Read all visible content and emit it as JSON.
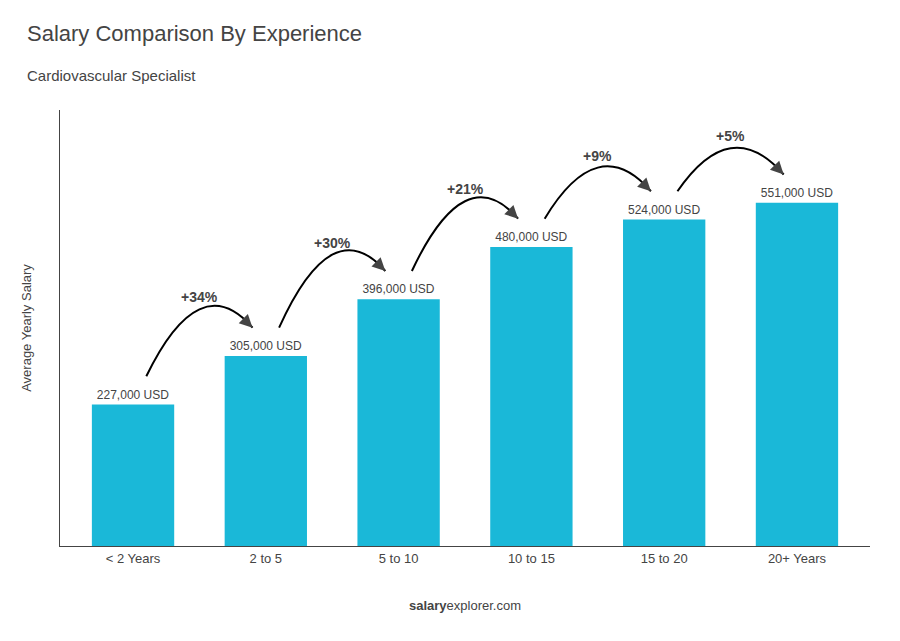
{
  "chart_data": {
    "type": "bar",
    "title": "Salary Comparison By Experience",
    "subtitle": "Cardiovascular Specialist",
    "categories": [
      "< 2 Years",
      "2 to 5",
      "5 to 10",
      "10 to 15",
      "15 to 20",
      "20+ Years"
    ],
    "values": [
      227000,
      305000,
      396000,
      480000,
      524000,
      551000
    ],
    "value_labels": [
      "227,000 USD",
      "305,000 USD",
      "396,000 USD",
      "480,000 USD",
      "524,000 USD",
      "551,000 USD"
    ],
    "data_labels": true,
    "annotations": [
      "+34%",
      "+30%",
      "+21%",
      "+9%",
      "+5%"
    ],
    "ylabel": "Average Yearly Salary",
    "footer": [
      "salary",
      "explorer.com"
    ],
    "color": "#1ab8d8",
    "ylim": [
      0,
      700000
    ],
    "tick_labels": "x",
    "grid": false
  }
}
